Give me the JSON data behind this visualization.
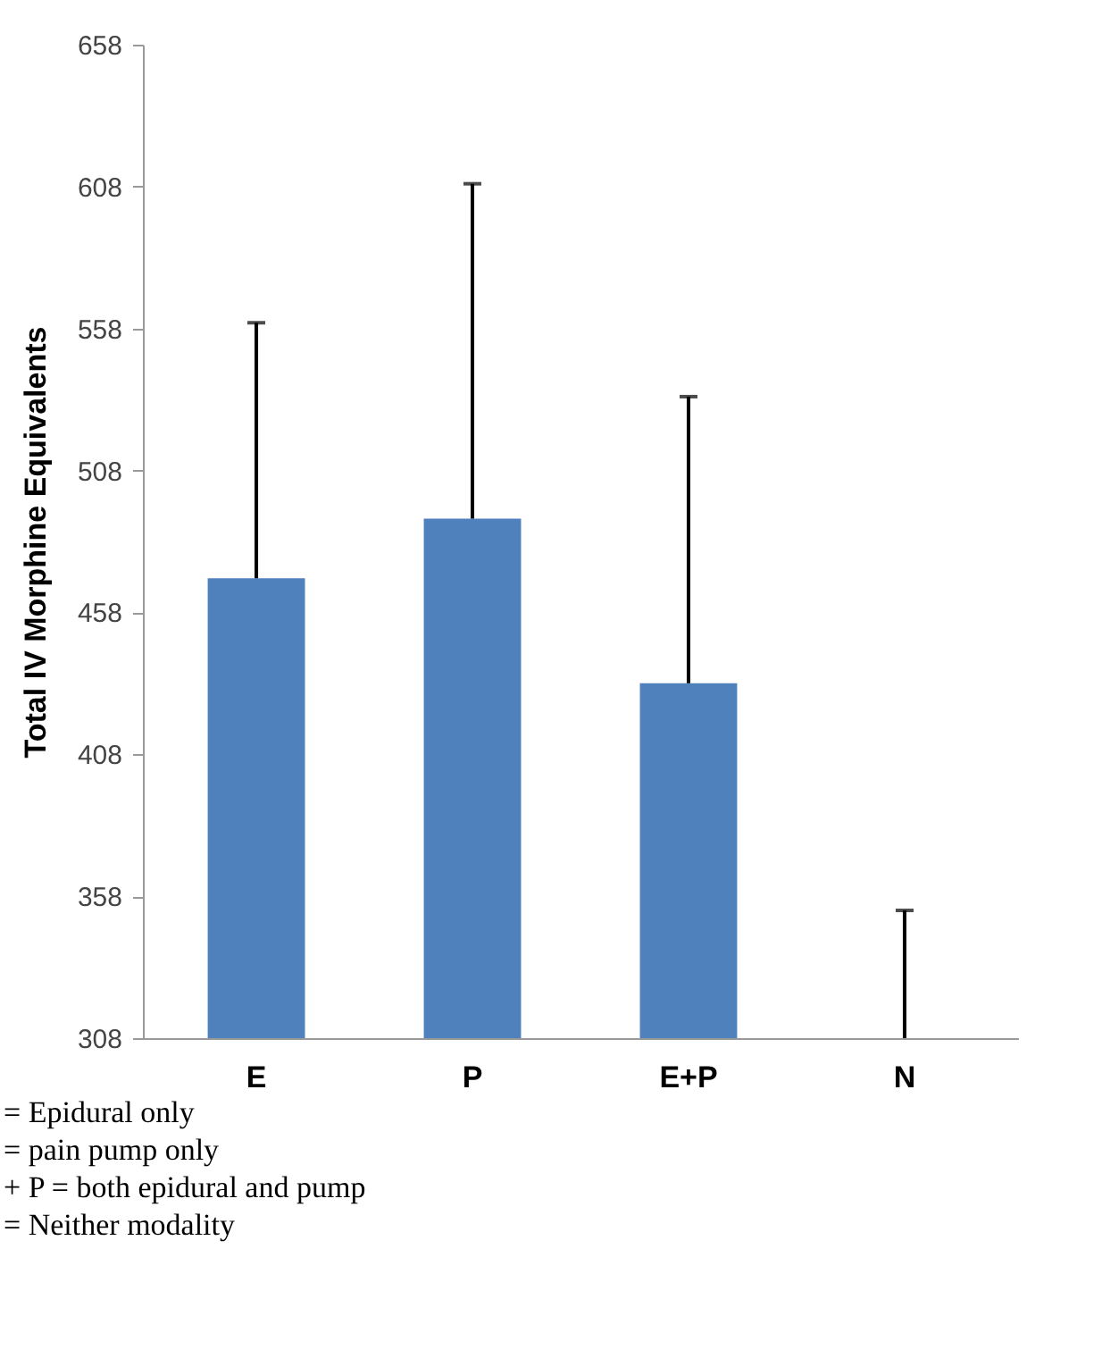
{
  "chart_data": {
    "type": "bar",
    "ylabel": "Total IV Morphine Equivalents",
    "categories": [
      "E",
      "P",
      "E+P",
      "N"
    ],
    "values": [
      470,
      491,
      433,
      308
    ],
    "errors": [
      [
        470,
        560
      ],
      [
        491,
        609
      ],
      [
        433,
        534
      ],
      [
        308,
        353
      ]
    ],
    "color": "#4f81bd",
    "ylim": [
      308,
      658
    ],
    "yticks": [
      308,
      358,
      408,
      458,
      508,
      558,
      608,
      658
    ],
    "grid": false,
    "annotations": [
      "= Epidural only",
      "= pain pump only",
      "+ P = both epidural and pump",
      "= Neither modality"
    ]
  }
}
